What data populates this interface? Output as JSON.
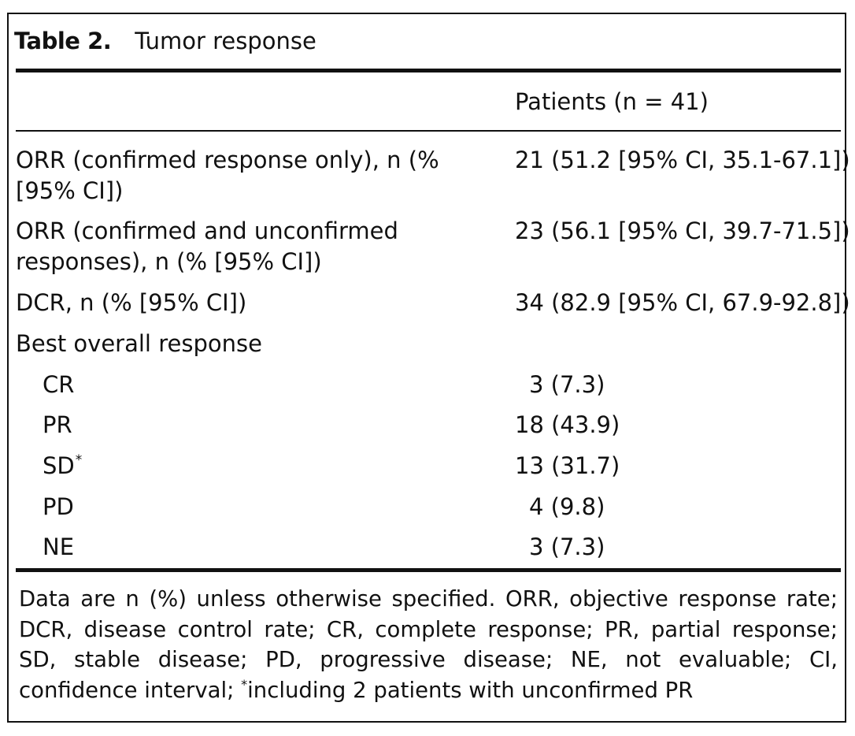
{
  "table": {
    "label": "Table 2.",
    "title": "Tumor response",
    "column_header": "Patients (n = 41)",
    "rows": [
      {
        "label_line1": "ORR (confirmed response only), n (%",
        "label_line2": "[95% CI])",
        "value": "21 (51.2 [95% CI, 35.1-67.1])"
      },
      {
        "label_line1": "ORR (confirmed and unconfirmed",
        "label_line2": "responses), n (% [95% CI])",
        "value": "23 (56.1 [95% CI, 39.7-71.5])"
      },
      {
        "label_line1": "DCR, n (% [95% CI])",
        "value": "34 (82.9 [95% CI, 67.9-92.8])"
      },
      {
        "label_line1": "Best overall response",
        "value": ""
      }
    ],
    "subrows": [
      {
        "label": "CR",
        "value": "3 (7.3)"
      },
      {
        "label": "PR",
        "value": "18 (43.9)"
      },
      {
        "label": "SD",
        "marker": "*",
        "value": "13 (31.7)"
      },
      {
        "label": "PD",
        "value": "4 (9.8)"
      },
      {
        "label": "NE",
        "value": "3 (7.3)"
      }
    ],
    "footnote_part1": "Data are n (%) unless otherwise specified. ORR, objective response rate; DCR, disease control rate; CR, complete response; PR, partial response; SD, stable disease; PD, progressive disease; NE, not evaluable; CI, confidence interval; ",
    "footnote_marker": "*",
    "footnote_part2": "including 2 patients with unconfirmed PR"
  }
}
